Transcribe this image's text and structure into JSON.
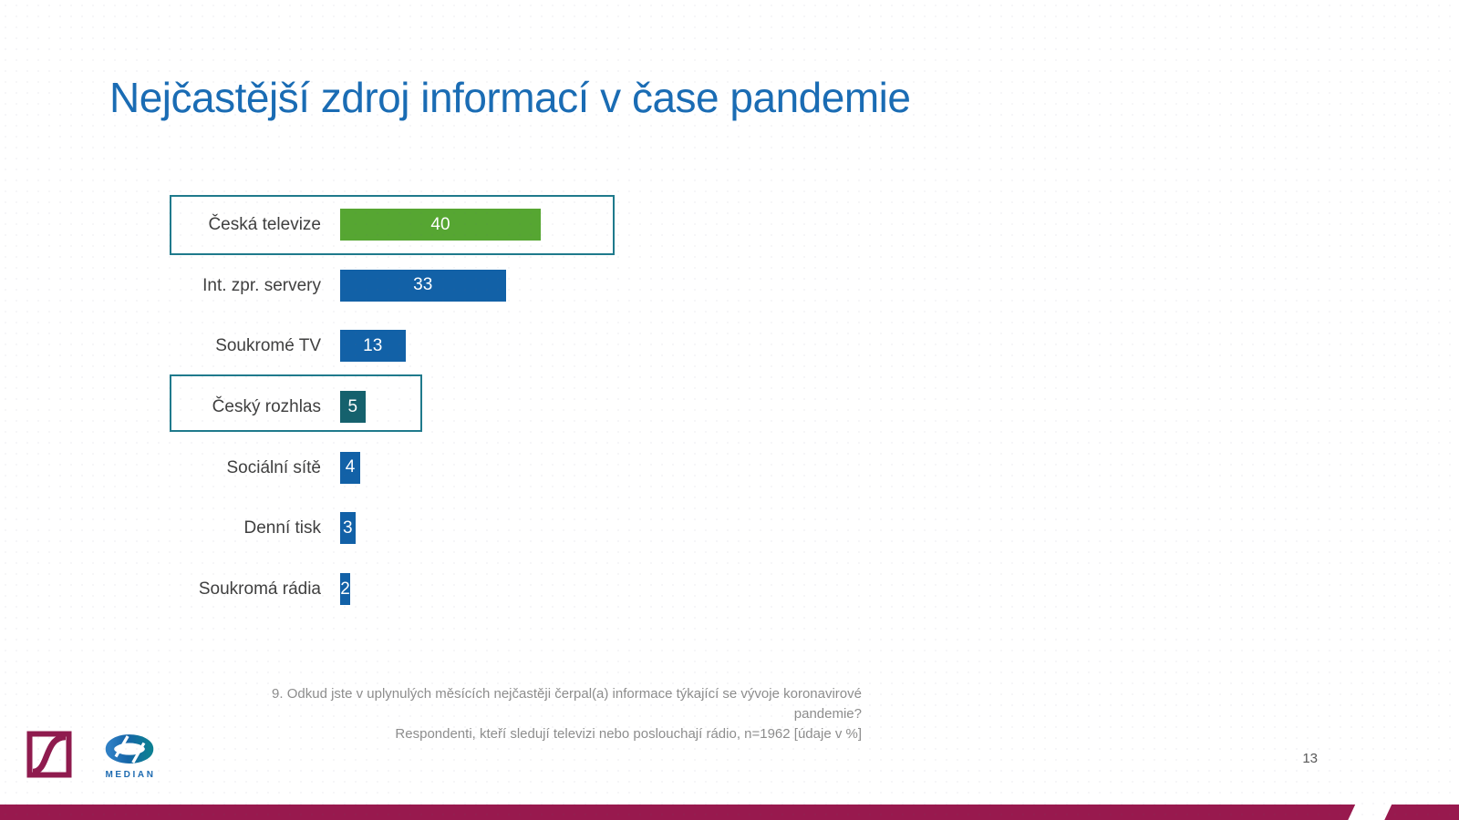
{
  "slide": {
    "title": "Nejčastější zdroj informací v čase pandemie",
    "page_number": "13"
  },
  "footnote": {
    "line1": "9. Odkud jste v uplynulých měsících nejčastěji čerpal(a) informace týkající se vývoje koronavirové pandemie?",
    "line2": "Respondenti, kteří sledují televizi nebo poslouchají rádio, n=1962  [údaje v %]"
  },
  "branding": {
    "median_wordmark": "MEDIAN",
    "accent_maroon": "#98194E",
    "title_blue": "#1A6CB4"
  },
  "chart_data": {
    "type": "bar",
    "orientation": "horizontal",
    "title": "",
    "categories": [
      "Česká televize",
      "Int. zpr. servery",
      "Soukromé TV",
      "Český rozhlas",
      "Sociální sítě",
      "Denní tisk",
      "Soukromá rádia"
    ],
    "values": [
      40,
      33,
      13,
      5,
      4,
      3,
      2
    ],
    "unit": "%",
    "bar_colors": [
      "#56A632",
      "#1261A7",
      "#1261A7",
      "#15616D",
      "#1261A7",
      "#1261A7",
      "#1261A7"
    ],
    "highlighted_categories": [
      "Česká televize",
      "Český rozhlas"
    ],
    "value_label_color": "#FFFFFF",
    "highlight_border_color": "#1F7A8C",
    "xlim": [
      0,
      45
    ],
    "grid": false,
    "legend": false
  }
}
